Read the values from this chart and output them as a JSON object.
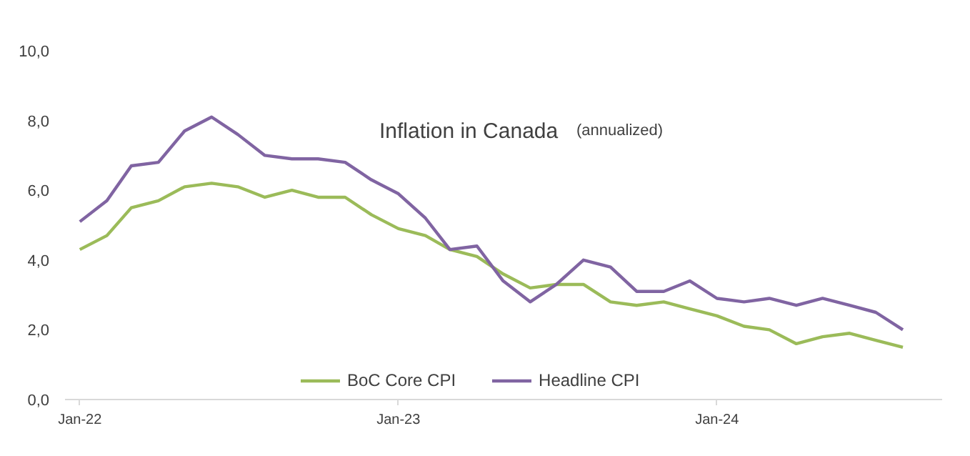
{
  "chart_data": {
    "type": "line",
    "title": "Inflation in Canada",
    "subtitle": "(annualized)",
    "x": [
      "2022-01",
      "2022-02",
      "2022-03",
      "2022-04",
      "2022-05",
      "2022-06",
      "2022-07",
      "2022-08",
      "2022-09",
      "2022-10",
      "2022-11",
      "2022-12",
      "2023-01",
      "2023-02",
      "2023-03",
      "2023-04",
      "2023-05",
      "2023-06",
      "2023-07",
      "2023-08",
      "2023-09",
      "2023-10",
      "2023-11",
      "2023-12",
      "2024-01",
      "2024-02",
      "2024-03",
      "2024-04",
      "2024-05",
      "2024-06",
      "2024-07",
      "2024-08"
    ],
    "series": [
      {
        "name": "BoC Core CPI",
        "color": "#9bbb59",
        "values": [
          4.3,
          4.7,
          5.5,
          5.7,
          6.1,
          6.2,
          6.1,
          5.8,
          6.0,
          5.8,
          5.8,
          5.3,
          4.9,
          4.7,
          4.3,
          4.1,
          3.6,
          3.2,
          3.3,
          3.3,
          2.8,
          2.7,
          2.8,
          2.6,
          2.4,
          2.1,
          2.0,
          1.6,
          1.8,
          1.9,
          1.7,
          1.5
        ]
      },
      {
        "name": "Headline CPI",
        "color": "#8064a2",
        "values": [
          5.1,
          5.7,
          6.7,
          6.8,
          7.7,
          8.1,
          7.6,
          7.0,
          6.9,
          6.9,
          6.8,
          6.3,
          5.9,
          5.2,
          4.3,
          4.4,
          3.4,
          2.8,
          3.3,
          4.0,
          3.8,
          3.1,
          3.1,
          3.4,
          2.9,
          2.8,
          2.9,
          2.7,
          2.9,
          2.7,
          2.5,
          2.0
        ]
      }
    ],
    "xlim": [
      "2021-12-15",
      "2024-09-15"
    ],
    "xticks": [
      {
        "value": "2022-01",
        "label": "Jan-22"
      },
      {
        "value": "2023-01",
        "label": "Jan-23"
      },
      {
        "value": "2024-01",
        "label": "Jan-24"
      }
    ],
    "ylim": [
      0,
      10
    ],
    "yticks": [
      {
        "value": 0,
        "label": "0,0"
      },
      {
        "value": 2,
        "label": "2,0"
      },
      {
        "value": 4,
        "label": "4,0"
      },
      {
        "value": 6,
        "label": "6,0"
      },
      {
        "value": 8,
        "label": "8,0"
      },
      {
        "value": 10,
        "label": "10,0"
      }
    ],
    "grid": false,
    "legend": "bottom",
    "line_style": "solid"
  }
}
